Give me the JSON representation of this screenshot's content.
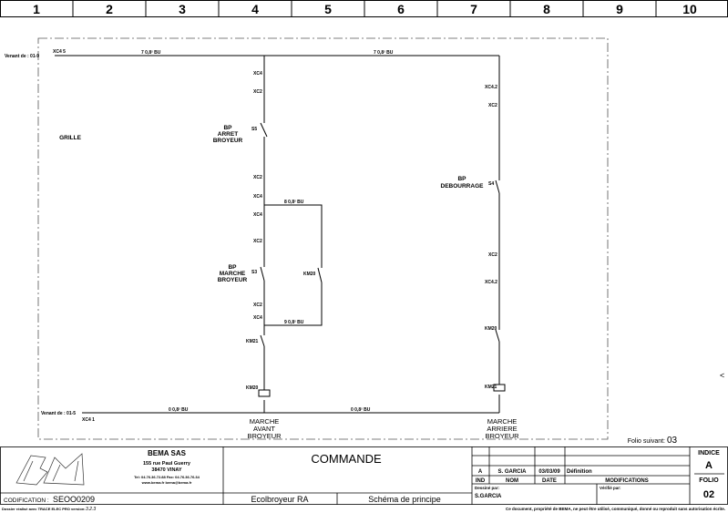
{
  "columns": [
    "1",
    "2",
    "3",
    "4",
    "5",
    "6",
    "7",
    "8",
    "9",
    "10"
  ],
  "schematic": {
    "from_top": "Venant de : 01-9",
    "from_bottom": "Venant de : 01-5",
    "wire_labels": {
      "top_left": "7 0,8² BU",
      "top_right": "7 0,8² BU",
      "bottom_left": "0 0,8² BU",
      "bottom_right": "0 0,8² BU",
      "branch_top": "8 0,8² BU",
      "branch_bottom": "9 0,8² BU"
    },
    "terminals": {
      "top_in": "XC4 5",
      "bottom_in": "XC4 1",
      "x1": "XC4",
      "x2": "XC2",
      "x3": "XC2",
      "x4": "XC4",
      "x5": "XC4",
      "x6": "XC2",
      "x7": "XC2",
      "x8": "XC4",
      "r1": "XC4.2",
      "r2": "XC2",
      "r3": "XC2",
      "r4": "XC4.2"
    },
    "grille": "GRILLE",
    "bp_arret": [
      "BP",
      "ARRET",
      "BROYEUR"
    ],
    "bp_arret_ref": "S5",
    "bp_marche": [
      "BP",
      "MARCHE",
      "BROYEUR"
    ],
    "bp_marche_ref": "S3",
    "bp_debourrage": [
      "BP",
      "DEBOURRAGE"
    ],
    "bp_debourrage_ref": "S4",
    "km_contact_branch": "KM20",
    "km21_contact": "KM21",
    "km20_coil": "KM20",
    "km20_contact_right": "KM20",
    "km21_coil": "KM21",
    "output_left": [
      "MARCHE",
      "AVANT",
      "BROYEUR"
    ],
    "output_right": [
      "MARCHE",
      "ARRIERE",
      "BROYEUR"
    ],
    "folio_next_label": "Folio suivant:",
    "folio_next": "03"
  },
  "title_block": {
    "logo": "BM",
    "company": "BEMA SAS",
    "address1": "155 rue Paul Guerry",
    "address2": "38470 VINAY",
    "phone": "Tel: 04.76.36.72.88 Fax: 04.76.36.76.34",
    "web": "www.bema.fr      bema@bema.fr",
    "title": "COMMANDE",
    "codification_label": "CODIFICATION :",
    "codification": "SEOO0209",
    "project": "Ecolbroyeur RA",
    "doc_type": "Schéma de principe",
    "revision": {
      "ind": "A",
      "nom": "S. GARCIA",
      "date": "03/03/09",
      "modif": "Définition"
    },
    "headers": {
      "ind": "IND",
      "nom": "NOM",
      "date": "DATE",
      "modif": "MODIFICATIONS"
    },
    "drawn_by_label": "Dessiné par:",
    "drawn_by": "S.GARCIA",
    "checked_by_label": "Vérifié par:",
    "indice_label": "INDICE",
    "indice": "A",
    "folio_label": "FOLIO",
    "folio": "02"
  },
  "footer": {
    "software": "Dossier réalisé avec TRACE ELEC PRO version:",
    "version": "3.2.3",
    "copyright": "Ce document, propriété de BEMA, ne peut être utilisé, communiqué, donné ou reproduit sans autorisation écrite."
  }
}
